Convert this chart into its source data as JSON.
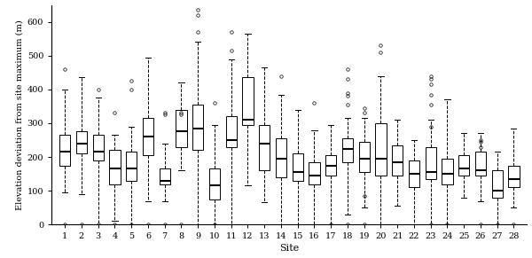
{
  "sites": [
    1,
    2,
    3,
    4,
    5,
    6,
    7,
    8,
    9,
    10,
    11,
    12,
    13,
    14,
    15,
    16,
    17,
    18,
    19,
    20,
    21,
    22,
    23,
    24,
    25,
    26,
    27,
    28
  ],
  "boxes": [
    {
      "q1": 175,
      "med": 215,
      "q3": 265,
      "whislo": 95,
      "whishi": 400,
      "fliers": [
        0,
        460
      ]
    },
    {
      "q1": 210,
      "med": 240,
      "q3": 275,
      "whislo": 90,
      "whishi": 435,
      "fliers": [
        0
      ]
    },
    {
      "q1": 190,
      "med": 215,
      "q3": 265,
      "whislo": 0,
      "whishi": 375,
      "fliers": [
        0,
        400
      ]
    },
    {
      "q1": 120,
      "med": 165,
      "q3": 220,
      "whislo": 10,
      "whishi": 265,
      "fliers": [
        0,
        330
      ]
    },
    {
      "q1": 130,
      "med": 165,
      "q3": 215,
      "whislo": 0,
      "whishi": 290,
      "fliers": [
        0,
        400,
        425
      ]
    },
    {
      "q1": 205,
      "med": 260,
      "q3": 315,
      "whislo": 70,
      "whishi": 495,
      "fliers": [
        0
      ]
    },
    {
      "q1": 120,
      "med": 130,
      "q3": 165,
      "whislo": 70,
      "whishi": 240,
      "fliers": [
        0,
        325,
        330
      ]
    },
    {
      "q1": 230,
      "med": 275,
      "q3": 340,
      "whislo": 160,
      "whishi": 420,
      "fliers": [
        0,
        325,
        330
      ]
    },
    {
      "q1": 220,
      "med": 285,
      "q3": 355,
      "whislo": 0,
      "whishi": 540,
      "fliers": [
        570,
        635,
        620
      ]
    },
    {
      "q1": 75,
      "med": 115,
      "q3": 165,
      "whislo": 0,
      "whishi": 295,
      "fliers": [
        0,
        360
      ]
    },
    {
      "q1": 230,
      "med": 250,
      "q3": 320,
      "whislo": 0,
      "whishi": 490,
      "fliers": [
        515,
        570
      ]
    },
    {
      "q1": 295,
      "med": 310,
      "q3": 435,
      "whislo": 115,
      "whishi": 565,
      "fliers": []
    },
    {
      "q1": 160,
      "med": 240,
      "q3": 295,
      "whislo": 65,
      "whishi": 465,
      "fliers": []
    },
    {
      "q1": 140,
      "med": 195,
      "q3": 255,
      "whislo": 0,
      "whishi": 385,
      "fliers": [
        440
      ]
    },
    {
      "q1": 130,
      "med": 155,
      "q3": 210,
      "whislo": 0,
      "whishi": 340,
      "fliers": []
    },
    {
      "q1": 120,
      "med": 145,
      "q3": 185,
      "whislo": 0,
      "whishi": 280,
      "fliers": [
        360
      ]
    },
    {
      "q1": 145,
      "med": 175,
      "q3": 205,
      "whislo": 0,
      "whishi": 295,
      "fliers": [
        0
      ]
    },
    {
      "q1": 185,
      "med": 225,
      "q3": 255,
      "whislo": 30,
      "whishi": 315,
      "fliers": [
        0,
        355,
        380,
        390,
        430,
        460
      ]
    },
    {
      "q1": 155,
      "med": 195,
      "q3": 245,
      "whislo": 50,
      "whishi": 315,
      "fliers": [
        0,
        85,
        330,
        345
      ]
    },
    {
      "q1": 145,
      "med": 195,
      "q3": 300,
      "whislo": 0,
      "whishi": 440,
      "fliers": [
        510,
        530
      ]
    },
    {
      "q1": 145,
      "med": 185,
      "q3": 235,
      "whislo": 55,
      "whishi": 310,
      "fliers": []
    },
    {
      "q1": 110,
      "med": 150,
      "q3": 190,
      "whislo": 0,
      "whishi": 250,
      "fliers": []
    },
    {
      "q1": 135,
      "med": 155,
      "q3": 230,
      "whislo": 0,
      "whishi": 310,
      "fliers": [
        0,
        290,
        355,
        385,
        415,
        430,
        440
      ]
    },
    {
      "q1": 120,
      "med": 150,
      "q3": 195,
      "whislo": 0,
      "whishi": 370,
      "fliers": [
        0
      ]
    },
    {
      "q1": 145,
      "med": 165,
      "q3": 205,
      "whislo": 80,
      "whishi": 270,
      "fliers": []
    },
    {
      "q1": 145,
      "med": 160,
      "q3": 215,
      "whislo": 70,
      "whishi": 270,
      "fliers": [
        0,
        230,
        245,
        250
      ]
    },
    {
      "q1": 80,
      "med": 100,
      "q3": 160,
      "whislo": 0,
      "whishi": 215,
      "fliers": [
        0
      ]
    },
    {
      "q1": 110,
      "med": 135,
      "q3": 175,
      "whislo": 50,
      "whishi": 285,
      "fliers": [
        0
      ]
    }
  ],
  "ylabel": "Elevation deviation from site maximum (m)",
  "xlabel": "Site",
  "ylim": [
    0,
    650
  ],
  "yticks": [
    0,
    100,
    200,
    300,
    400,
    500,
    600
  ],
  "bg_color": "#ffffff",
  "box_color": "#ffffff",
  "median_color": "#000000",
  "whisker_color": "#000000",
  "flier_color": "#000000",
  "box_edge_color": "#000000",
  "fontfamily": "DejaVu Serif"
}
